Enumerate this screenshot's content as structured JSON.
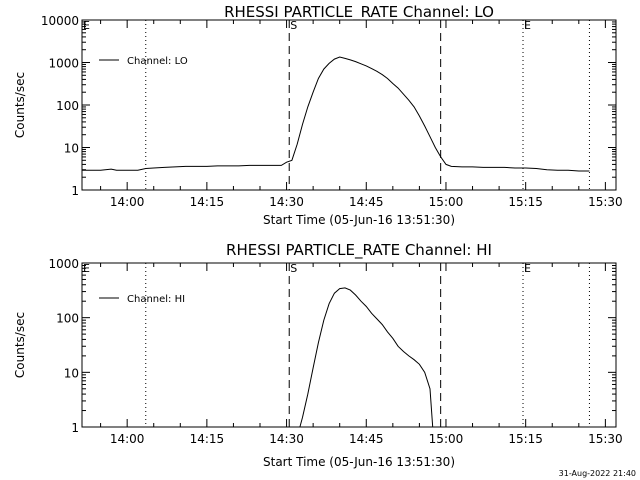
{
  "footer": {
    "timestamp": "31-Aug-2022 21:40"
  },
  "chart_data": [
    {
      "type": "line",
      "title": "RHESSI PARTICLE_RATE Channel: LO",
      "xlabel": "Start Time (05-Jun-16 13:51:30)",
      "ylabel": "Counts/sec",
      "yscale": "log",
      "ylim": [
        1,
        10000
      ],
      "xlim": [
        "13:51:30",
        "15:32:00"
      ],
      "y_ticks": [
        1,
        10,
        100,
        1000,
        10000
      ],
      "y_tick_labels": [
        "1",
        "10",
        "100",
        "1000",
        "10000"
      ],
      "x_ticks": [
        "14:00",
        "14:15",
        "14:30",
        "14:45",
        "15:00",
        "15:15",
        "15:30"
      ],
      "legend": {
        "entries": [
          "Channel: LO"
        ],
        "position": "top-left"
      },
      "markers": [
        {
          "time": "13:51:30",
          "label": "E",
          "style": "dotted"
        },
        {
          "time": "14:03:30",
          "label": "",
          "style": "dotted"
        },
        {
          "time": "14:30:30",
          "label": "S",
          "style": "dashed"
        },
        {
          "time": "14:59:00",
          "label": "",
          "style": "dashed"
        },
        {
          "time": "15:14:30",
          "label": "E",
          "style": "dotted"
        },
        {
          "time": "15:27:00",
          "label": "",
          "style": "dotted"
        }
      ],
      "series": [
        {
          "name": "Channel: LO",
          "x": [
            "13:51:30",
            "13:55:00",
            "13:57:00",
            "13:58:00",
            "14:00:00",
            "14:02:00",
            "14:03:30",
            "14:05:00",
            "14:07:00",
            "14:09:00",
            "14:11:00",
            "14:13:00",
            "14:15:00",
            "14:17:00",
            "14:19:00",
            "14:21:00",
            "14:23:00",
            "14:25:00",
            "14:27:00",
            "14:29:00",
            "14:30:00",
            "14:31:00",
            "14:32:00",
            "14:33:00",
            "14:34:00",
            "14:35:00",
            "14:36:00",
            "14:37:00",
            "14:38:00",
            "14:39:00",
            "14:40:00",
            "14:41:00",
            "14:42:00",
            "14:43:00",
            "14:44:00",
            "14:45:00",
            "14:46:00",
            "14:47:00",
            "14:48:00",
            "14:49:00",
            "14:50:00",
            "14:51:00",
            "14:52:00",
            "14:53:00",
            "14:54:00",
            "14:55:00",
            "14:56:00",
            "14:57:00",
            "14:58:00",
            "14:59:00",
            "15:00:00",
            "15:01:00",
            "15:03:00",
            "15:05:00",
            "15:07:00",
            "15:09:00",
            "15:11:00",
            "15:13:00",
            "15:15:00",
            "15:17:00",
            "15:19:00",
            "15:21:00",
            "15:23:00",
            "15:25:00",
            "15:27:00"
          ],
          "values": [
            2.9,
            2.9,
            3.1,
            2.9,
            2.9,
            2.9,
            3.2,
            3.3,
            3.4,
            3.5,
            3.6,
            3.6,
            3.6,
            3.7,
            3.7,
            3.7,
            3.8,
            3.8,
            3.8,
            3.8,
            4.5,
            5.0,
            12,
            35,
            90,
            200,
            420,
            700,
            950,
            1200,
            1350,
            1250,
            1150,
            1050,
            930,
            830,
            720,
            620,
            520,
            420,
            320,
            250,
            180,
            130,
            90,
            55,
            32,
            18,
            10,
            6,
            4.0,
            3.6,
            3.5,
            3.5,
            3.4,
            3.4,
            3.4,
            3.3,
            3.3,
            3.2,
            3.0,
            2.9,
            2.9,
            2.8,
            2.8
          ]
        }
      ]
    },
    {
      "type": "line",
      "title": "RHESSI PARTICLE_RATE Channel: HI",
      "xlabel": "Start Time (05-Jun-16 13:51:30)",
      "ylabel": "Counts/sec",
      "yscale": "log",
      "ylim": [
        1,
        1000
      ],
      "xlim": [
        "13:51:30",
        "15:32:00"
      ],
      "y_ticks": [
        1,
        10,
        100,
        1000
      ],
      "y_tick_labels": [
        "1",
        "10",
        "100",
        "1000"
      ],
      "x_ticks": [
        "14:00",
        "14:15",
        "14:30",
        "14:45",
        "15:00",
        "15:15",
        "15:30"
      ],
      "legend": {
        "entries": [
          "Channel: HI"
        ],
        "position": "top-left"
      },
      "markers": [
        {
          "time": "13:51:30",
          "label": "E",
          "style": "dotted"
        },
        {
          "time": "14:03:30",
          "label": "",
          "style": "dotted"
        },
        {
          "time": "14:30:30",
          "label": "S",
          "style": "dashed"
        },
        {
          "time": "14:59:00",
          "label": "",
          "style": "dashed"
        },
        {
          "time": "15:14:30",
          "label": "E",
          "style": "dotted"
        },
        {
          "time": "15:27:00",
          "label": "",
          "style": "dotted"
        }
      ],
      "series": [
        {
          "name": "Channel: HI",
          "x": [
            "14:32:30",
            "14:33:00",
            "14:34:00",
            "14:35:00",
            "14:36:00",
            "14:37:00",
            "14:38:00",
            "14:39:00",
            "14:40:00",
            "14:41:00",
            "14:42:00",
            "14:43:00",
            "14:44:00",
            "14:45:00",
            "14:46:00",
            "14:47:00",
            "14:48:00",
            "14:49:00",
            "14:50:00",
            "14:51:00",
            "14:52:00",
            "14:53:00",
            "14:54:00",
            "14:55:00",
            "14:56:00",
            "14:57:00",
            "14:57:30"
          ],
          "values": [
            1.0,
            1.5,
            4,
            12,
            35,
            90,
            180,
            280,
            340,
            350,
            320,
            260,
            200,
            160,
            120,
            95,
            75,
            55,
            42,
            30,
            24,
            20,
            17,
            14,
            10,
            5,
            1.0
          ]
        }
      ]
    }
  ]
}
